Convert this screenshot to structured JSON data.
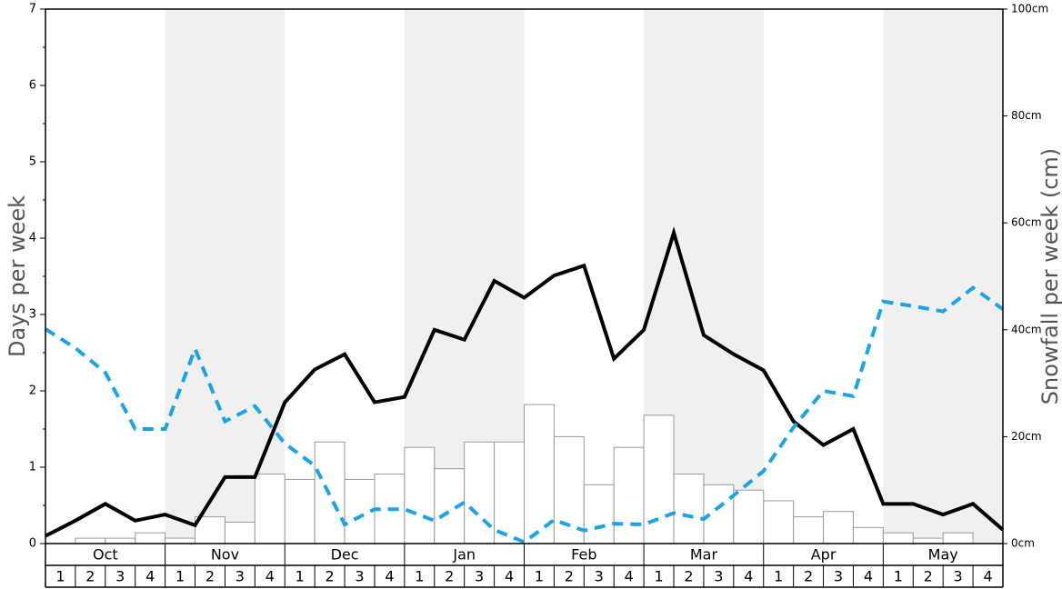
{
  "chart_data": {
    "type": "bar",
    "ylabel": "Days per week",
    "y2label": "Snowfall per week (cm)",
    "months": [
      "Oct",
      "Nov",
      "Dec",
      "Jan",
      "Feb",
      "Mar",
      "Apr",
      "May"
    ],
    "shaded_months": [
      false,
      true,
      false,
      true,
      false,
      true,
      false,
      true
    ],
    "categories": [
      "1",
      "2",
      "3",
      "4",
      "1",
      "2",
      "3",
      "4",
      "1",
      "2",
      "3",
      "4",
      "1",
      "2",
      "3",
      "4",
      "1",
      "2",
      "3",
      "4",
      "1",
      "2",
      "3",
      "4",
      "1",
      "2",
      "3",
      "4",
      "1",
      "2",
      "3",
      "4"
    ],
    "bar_series": {
      "color": "#ffffff",
      "edge_color": "#999999",
      "axis": "y2",
      "values": [
        0,
        1,
        1,
        2,
        1,
        5,
        4,
        13,
        12,
        19,
        12,
        13,
        18,
        14,
        19,
        19,
        26,
        20,
        11,
        18,
        24,
        13,
        11,
        10,
        8,
        5,
        6,
        3,
        2,
        1,
        2,
        0
      ]
    },
    "line_series": [
      {
        "color": "#000000",
        "dashed": false,
        "values": [
          0.1,
          0.3,
          0.52,
          0.3,
          0.38,
          0.24,
          0.87,
          0.87,
          1.85,
          2.28,
          2.48,
          1.85,
          1.92,
          2.8,
          2.67,
          3.44,
          3.22,
          3.51,
          3.64,
          2.42,
          2.8,
          4.07,
          2.73,
          2.48,
          2.27,
          1.6,
          1.29,
          1.5,
          0.52,
          0.52,
          0.38,
          0.52,
          0.18
        ]
      },
      {
        "color": "#1aa3e8",
        "dashed": true,
        "values": [
          2.81,
          2.56,
          2.24,
          1.5,
          1.5,
          2.55,
          1.6,
          1.8,
          1.31,
          1.02,
          0.25,
          0.45,
          0.45,
          0.3,
          0.54,
          0.18,
          0.02,
          0.31,
          0.17,
          0.26,
          0.25,
          0.4,
          0.32,
          0.63,
          0.95,
          1.52,
          2.0,
          1.93,
          3.17,
          3.11,
          3.04,
          3.35,
          3.07
        ]
      }
    ],
    "ylim": [
      0,
      7
    ],
    "yticks": [
      0,
      1,
      2,
      3,
      4,
      5,
      6,
      7
    ],
    "y2lim": [
      0,
      100
    ],
    "y2ticks": [
      {
        "value": 0,
        "label": "0cm"
      },
      {
        "value": 20,
        "label": "20cm"
      },
      {
        "value": 40,
        "label": "40cm"
      },
      {
        "value": 60,
        "label": "60cm"
      },
      {
        "value": 80,
        "label": "80cm"
      },
      {
        "value": 100,
        "label": "100cm"
      }
    ]
  }
}
